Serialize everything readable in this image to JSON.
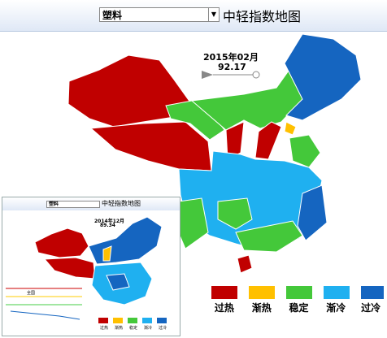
{
  "toolbar": {
    "dropdown": "塑料",
    "title": "中轻指数地图"
  },
  "main": {
    "date": "2015年02月",
    "value": "92.17"
  },
  "legend": [
    "过热",
    "渐热",
    "稳定",
    "渐冷",
    "过冷"
  ],
  "inset": {
    "toolbar": {
      "dropdown": "塑料",
      "title": "中轻指数地图"
    },
    "date": "2014年12月",
    "value": "89.34",
    "chart_label": "全国",
    "legend": [
      "过热",
      "渐热",
      "稳定",
      "渐冷",
      "过冷"
    ]
  }
}
